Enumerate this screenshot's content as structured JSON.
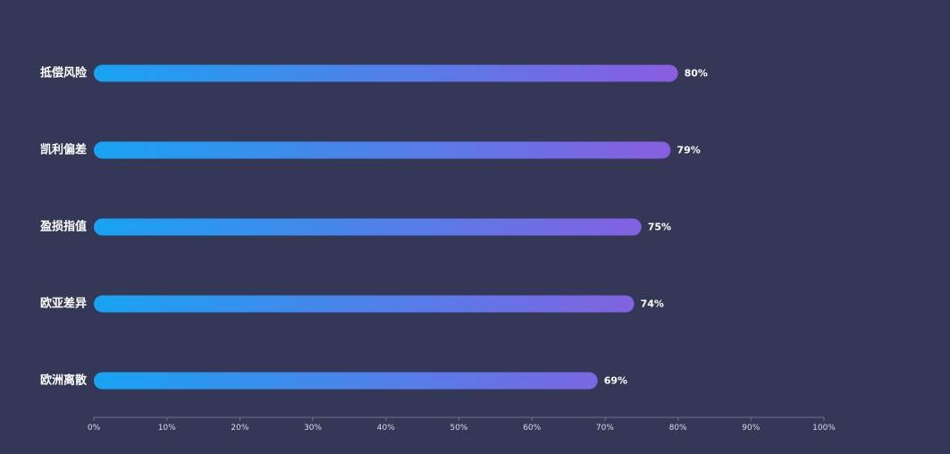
{
  "chart_data": {
    "type": "bar",
    "orientation": "horizontal",
    "categories": [
      "抵偿风险",
      "凯利偏差",
      "盈损指值",
      "欧亚差异",
      "欧洲离散"
    ],
    "values": [
      80,
      79,
      75,
      74,
      69
    ],
    "value_labels": [
      "80%",
      "79%",
      "75%",
      "74%",
      "69%"
    ],
    "xlim": [
      0,
      100
    ],
    "x_ticks": [
      0,
      10,
      20,
      30,
      40,
      50,
      60,
      70,
      80,
      90,
      100
    ],
    "x_tick_labels": [
      "0%",
      "10%",
      "20%",
      "30%",
      "40%",
      "50%",
      "60%",
      "70%",
      "80%",
      "90%",
      "100%"
    ],
    "grid": false,
    "legend": "none",
    "colors": {
      "background": "#343856",
      "bar_gradient_start": "#18a3f3",
      "bar_gradient_end": "#8a5ddf",
      "axis": "#6e7290",
      "text": "#ffffff",
      "tick_text": "#d9dbe6"
    }
  }
}
